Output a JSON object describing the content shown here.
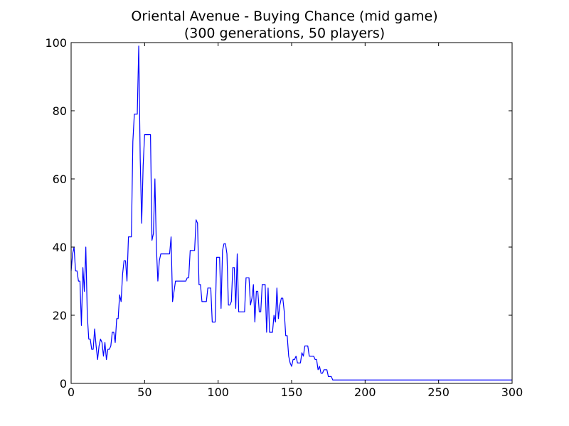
{
  "chart_data": {
    "type": "line",
    "title_lines": [
      "Oriental Avenue - Buying Chance (mid game)",
      "(300 generations, 50 players)"
    ],
    "xlabel": "",
    "ylabel": "",
    "xlim": [
      0,
      300
    ],
    "ylim": [
      0,
      100
    ],
    "xticks": [
      0,
      50,
      100,
      150,
      200,
      250,
      300
    ],
    "yticks": [
      0,
      20,
      40,
      60,
      80,
      100
    ],
    "grid": false,
    "series": [
      {
        "name": "buying chance",
        "color": "#0000ff",
        "points": [
          [
            0,
            33
          ],
          [
            1,
            38
          ],
          [
            2,
            40
          ],
          [
            3,
            33
          ],
          [
            4,
            33
          ],
          [
            5,
            30
          ],
          [
            6,
            30
          ],
          [
            7,
            17
          ],
          [
            8,
            34
          ],
          [
            9,
            27
          ],
          [
            10,
            40
          ],
          [
            11,
            20
          ],
          [
            12,
            13
          ],
          [
            13,
            13
          ],
          [
            14,
            10
          ],
          [
            15,
            10
          ],
          [
            16,
            16
          ],
          [
            17,
            11
          ],
          [
            18,
            7
          ],
          [
            19,
            11
          ],
          [
            20,
            13
          ],
          [
            21,
            12
          ],
          [
            22,
            8
          ],
          [
            23,
            12
          ],
          [
            24,
            7
          ],
          [
            25,
            10
          ],
          [
            26,
            10
          ],
          [
            27,
            11
          ],
          [
            28,
            15
          ],
          [
            29,
            15
          ],
          [
            30,
            12
          ],
          [
            31,
            19
          ],
          [
            32,
            19
          ],
          [
            33,
            26
          ],
          [
            34,
            24
          ],
          [
            35,
            32
          ],
          [
            36,
            36
          ],
          [
            37,
            36
          ],
          [
            38,
            30
          ],
          [
            39,
            43
          ],
          [
            40,
            43
          ],
          [
            41,
            43
          ],
          [
            42,
            71
          ],
          [
            43,
            79
          ],
          [
            44,
            79
          ],
          [
            45,
            79
          ],
          [
            46,
            99
          ],
          [
            47,
            66
          ],
          [
            48,
            47
          ],
          [
            49,
            64
          ],
          [
            50,
            73
          ],
          [
            51,
            73
          ],
          [
            52,
            73
          ],
          [
            53,
            73
          ],
          [
            54,
            73
          ],
          [
            55,
            42
          ],
          [
            56,
            44
          ],
          [
            57,
            60
          ],
          [
            58,
            40
          ],
          [
            59,
            30
          ],
          [
            60,
            36
          ],
          [
            61,
            38
          ],
          [
            62,
            38
          ],
          [
            63,
            38
          ],
          [
            64,
            38
          ],
          [
            65,
            38
          ],
          [
            66,
            38
          ],
          [
            67,
            38
          ],
          [
            68,
            43
          ],
          [
            69,
            24
          ],
          [
            70,
            27
          ],
          [
            71,
            30
          ],
          [
            72,
            30
          ],
          [
            73,
            30
          ],
          [
            74,
            30
          ],
          [
            75,
            30
          ],
          [
            76,
            30
          ],
          [
            77,
            30
          ],
          [
            78,
            30
          ],
          [
            79,
            31
          ],
          [
            80,
            31
          ],
          [
            81,
            39
          ],
          [
            82,
            39
          ],
          [
            83,
            39
          ],
          [
            84,
            39
          ],
          [
            85,
            48
          ],
          [
            86,
            47
          ],
          [
            87,
            29
          ],
          [
            88,
            29
          ],
          [
            89,
            24
          ],
          [
            90,
            24
          ],
          [
            91,
            24
          ],
          [
            92,
            24
          ],
          [
            93,
            28
          ],
          [
            94,
            28
          ],
          [
            95,
            28
          ],
          [
            96,
            18
          ],
          [
            97,
            18
          ],
          [
            98,
            18
          ],
          [
            99,
            37
          ],
          [
            100,
            37
          ],
          [
            101,
            37
          ],
          [
            102,
            22
          ],
          [
            103,
            39
          ],
          [
            104,
            41
          ],
          [
            105,
            41
          ],
          [
            106,
            38
          ],
          [
            107,
            23
          ],
          [
            108,
            23
          ],
          [
            109,
            24
          ],
          [
            110,
            34
          ],
          [
            111,
            34
          ],
          [
            112,
            22
          ],
          [
            113,
            38
          ],
          [
            114,
            21
          ],
          [
            115,
            21
          ],
          [
            116,
            21
          ],
          [
            117,
            21
          ],
          [
            118,
            21
          ],
          [
            119,
            31
          ],
          [
            120,
            31
          ],
          [
            121,
            31
          ],
          [
            122,
            23
          ],
          [
            123,
            25
          ],
          [
            124,
            29
          ],
          [
            125,
            18
          ],
          [
            126,
            27
          ],
          [
            127,
            27
          ],
          [
            128,
            21
          ],
          [
            129,
            21
          ],
          [
            130,
            29
          ],
          [
            131,
            29
          ],
          [
            132,
            29
          ],
          [
            133,
            15
          ],
          [
            134,
            28
          ],
          [
            135,
            15
          ],
          [
            136,
            15
          ],
          [
            137,
            15
          ],
          [
            138,
            20
          ],
          [
            139,
            18
          ],
          [
            140,
            28
          ],
          [
            141,
            19
          ],
          [
            142,
            23
          ],
          [
            143,
            25
          ],
          [
            144,
            25
          ],
          [
            145,
            21
          ],
          [
            146,
            14
          ],
          [
            147,
            14
          ],
          [
            148,
            8
          ],
          [
            149,
            6
          ],
          [
            150,
            5
          ],
          [
            151,
            7
          ],
          [
            152,
            7
          ],
          [
            153,
            8
          ],
          [
            154,
            6
          ],
          [
            155,
            6
          ],
          [
            156,
            6
          ],
          [
            157,
            9
          ],
          [
            158,
            8
          ],
          [
            159,
            11
          ],
          [
            160,
            11
          ],
          [
            161,
            11
          ],
          [
            162,
            8
          ],
          [
            163,
            8
          ],
          [
            164,
            8
          ],
          [
            165,
            8
          ],
          [
            166,
            7
          ],
          [
            167,
            7
          ],
          [
            168,
            4
          ],
          [
            169,
            5
          ],
          [
            170,
            3
          ],
          [
            171,
            3
          ],
          [
            172,
            4
          ],
          [
            173,
            4
          ],
          [
            174,
            4
          ],
          [
            175,
            2
          ],
          [
            176,
            2
          ],
          [
            177,
            2
          ],
          [
            178,
            1
          ],
          [
            179,
            1
          ],
          [
            180,
            1
          ],
          [
            200,
            1
          ],
          [
            220,
            1
          ],
          [
            240,
            1
          ],
          [
            260,
            1
          ],
          [
            280,
            1
          ],
          [
            300,
            1
          ]
        ]
      }
    ]
  }
}
